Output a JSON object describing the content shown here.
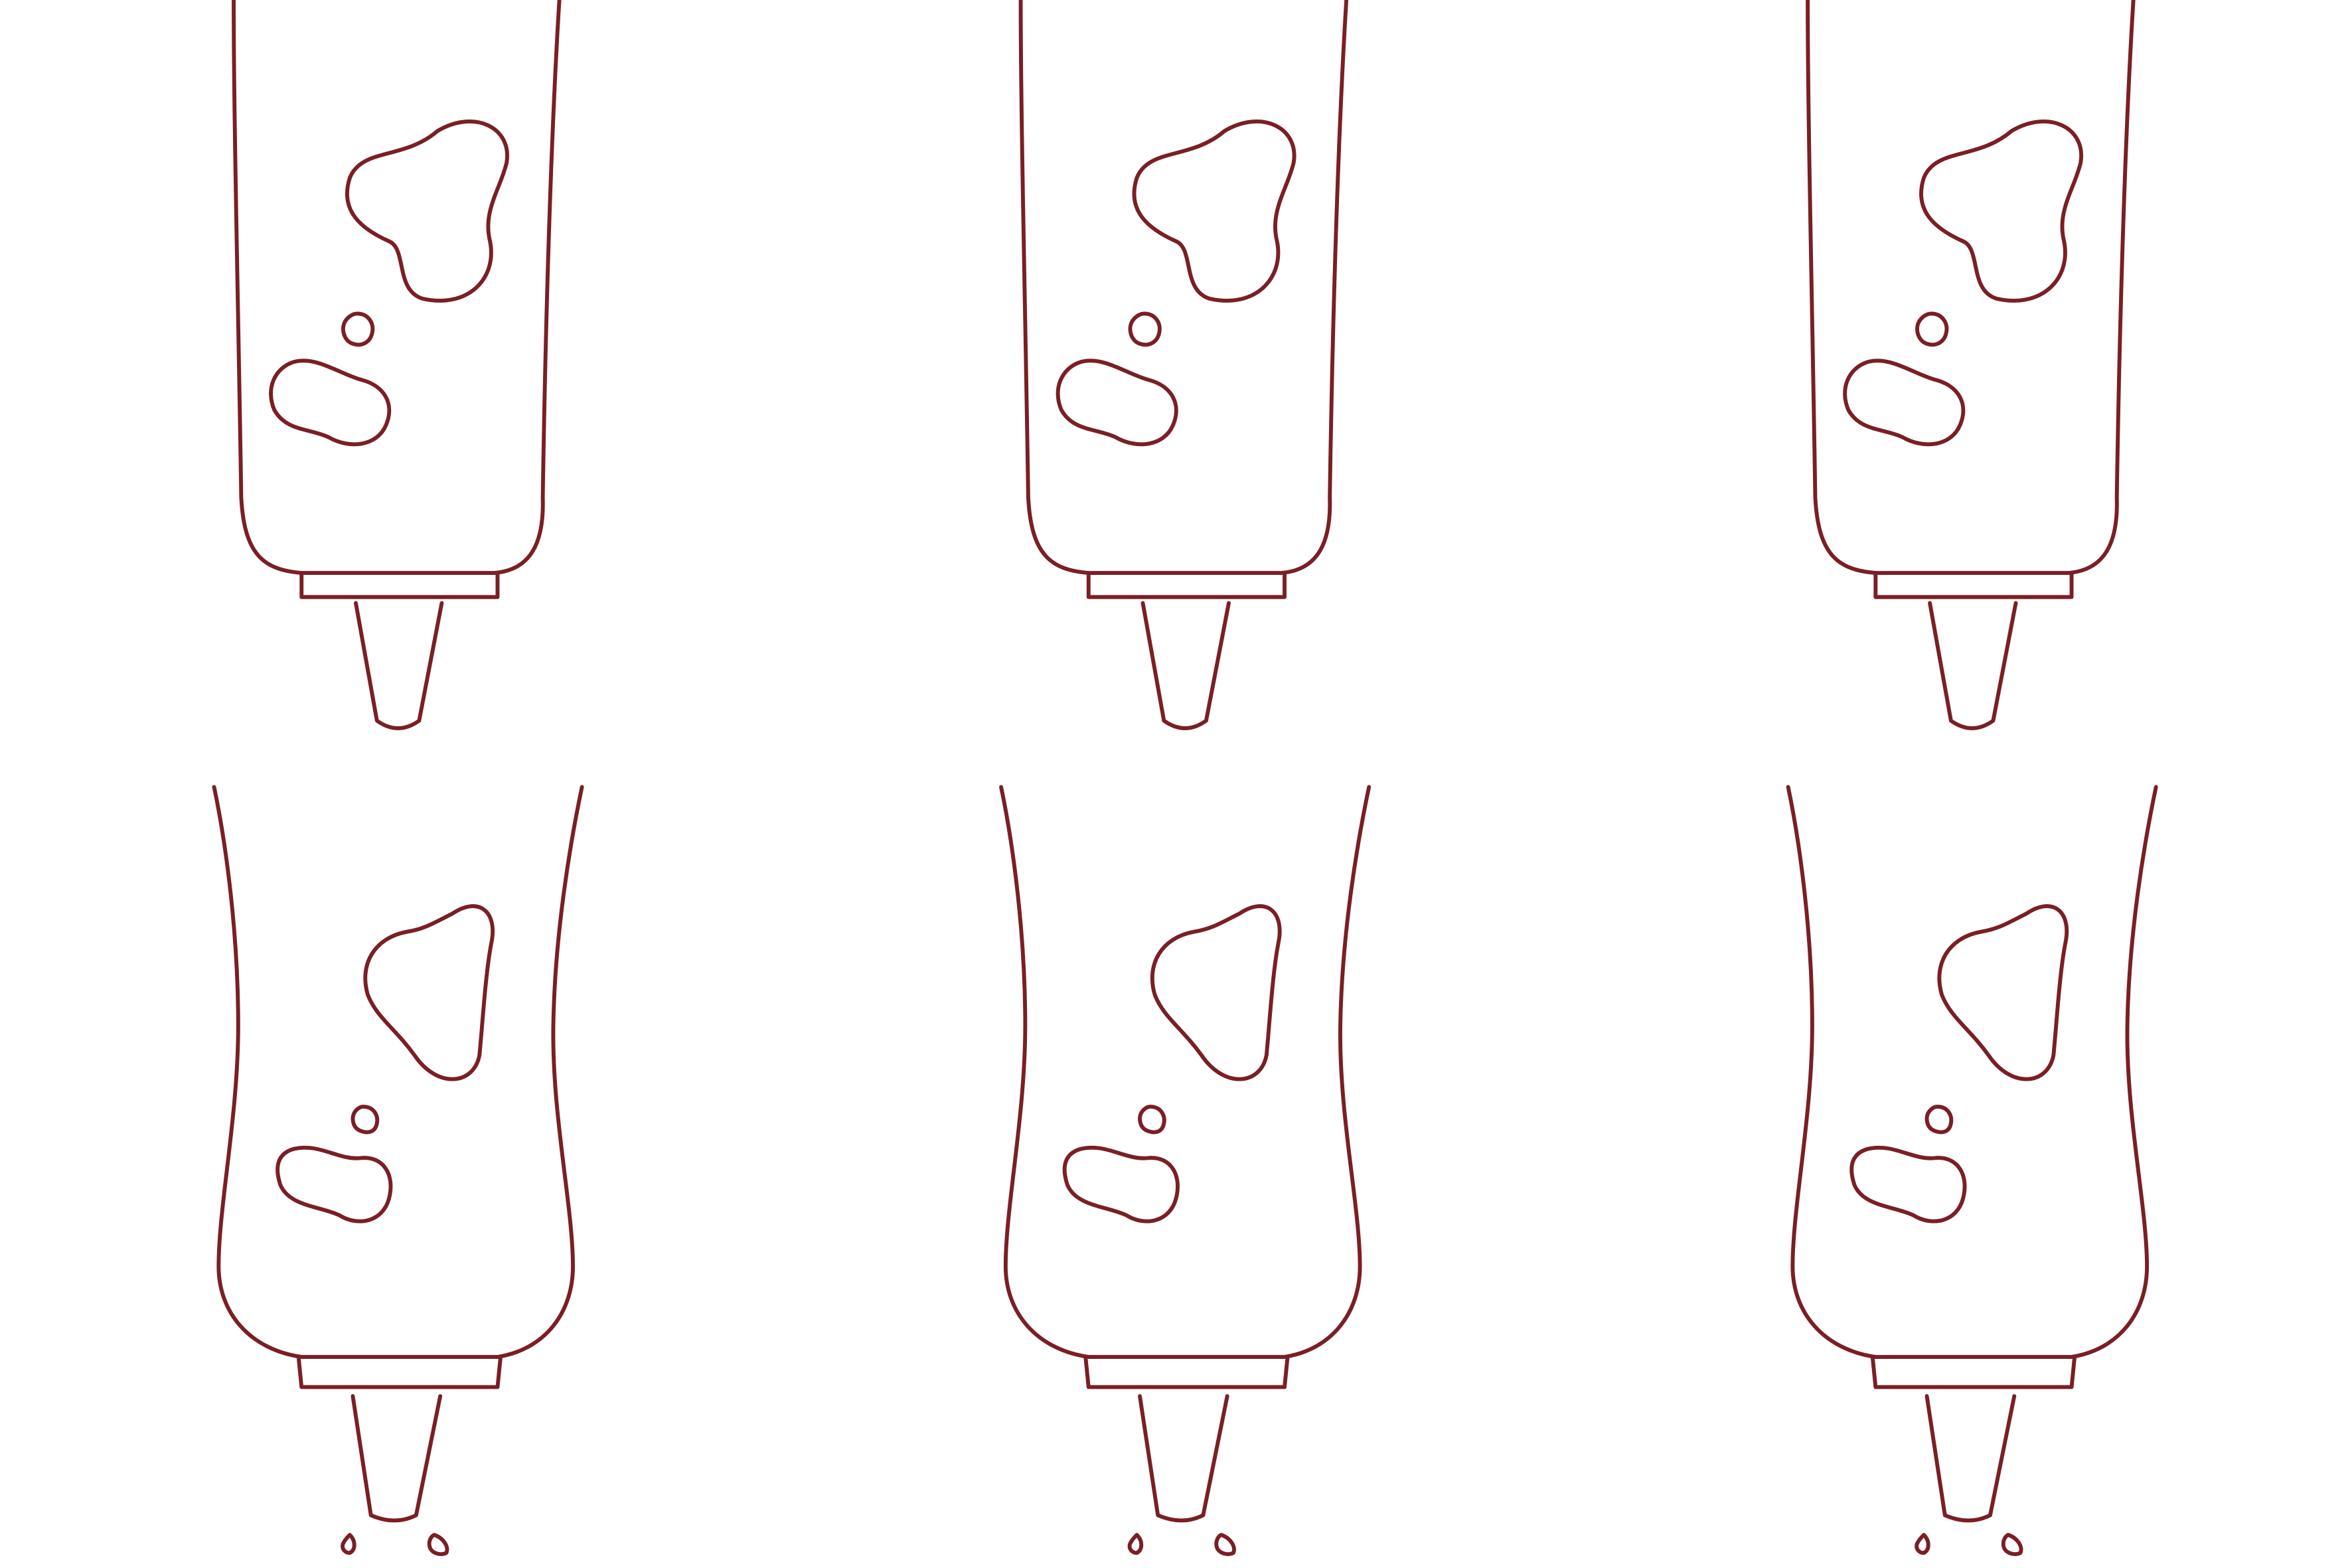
{
  "artwork": {
    "kind": "line-sketch",
    "subject": "squeeze-bottle-frames",
    "line_color": "#7a1f24",
    "background_color": "#ffffff"
  },
  "frames": [
    {
      "name": "frame-row1-col1",
      "shape": "straight",
      "spots": 3,
      "drops": false
    },
    {
      "name": "frame-row1-col2",
      "shape": "straight",
      "spots": 3,
      "drops": false
    },
    {
      "name": "frame-row1-col3",
      "shape": "straight",
      "spots": 3,
      "drops": false
    },
    {
      "name": "frame-row2-col1",
      "shape": "squeezed",
      "spots": 3,
      "drops": true
    },
    {
      "name": "frame-row2-col2",
      "shape": "squeezed",
      "spots": 3,
      "drops": true
    },
    {
      "name": "frame-row2-col3",
      "shape": "squeezed",
      "spots": 3,
      "drops": true
    }
  ]
}
